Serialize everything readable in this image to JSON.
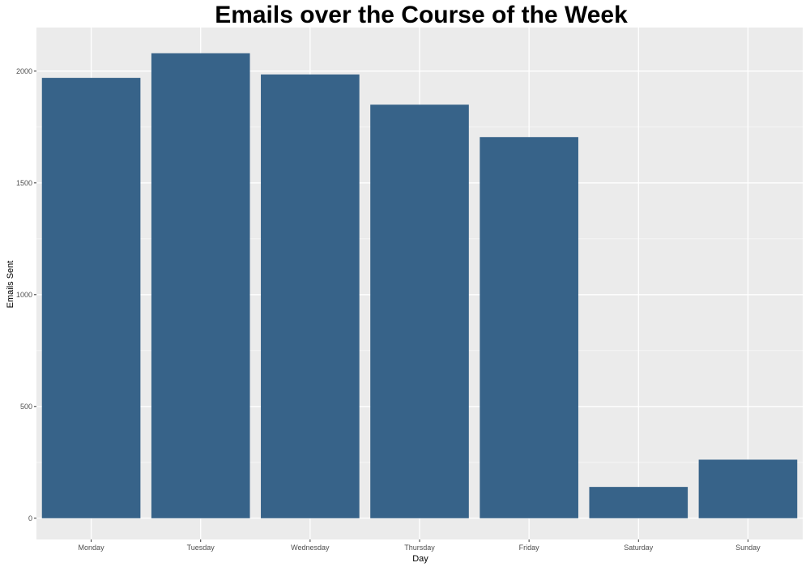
{
  "chart_data": {
    "type": "bar",
    "title": "Emails over the Course of the Week",
    "xlabel": "Day",
    "ylabel": "Emails Sent",
    "categories": [
      "Monday",
      "Tuesday",
      "Wednesday",
      "Thursday",
      "Friday",
      "Saturday",
      "Sunday"
    ],
    "values": [
      1970,
      2080,
      1985,
      1850,
      1705,
      140,
      262
    ],
    "ylim": [
      -95,
      2195
    ],
    "yticks": [
      0,
      500,
      1000,
      1500,
      2000
    ],
    "grid": true,
    "legend": "none",
    "colors": {
      "bar": "#376389",
      "panel_background": "#EBEBEB",
      "grid_major": "#FFFFFF",
      "grid_minor": "#F5F5F5"
    }
  }
}
